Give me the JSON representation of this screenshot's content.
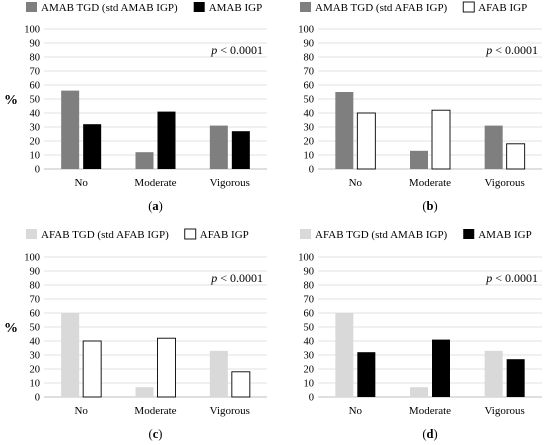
{
  "y_axis_label": "%",
  "chart_data": [
    {
      "type": "bar",
      "panel_label": "(a)",
      "categories": [
        "No",
        "Moderate",
        "Vigorous"
      ],
      "series": [
        {
          "name": "AMAB TGD (std AMAB IGP)",
          "values": [
            56,
            12,
            31
          ],
          "color": "#7f7f7f"
        },
        {
          "name": "AMAB IGP",
          "values": [
            32,
            41,
            27
          ],
          "color": "#000000"
        }
      ],
      "annotation": "p < 0.0001",
      "ylim": [
        0,
        100
      ],
      "yticks": [
        0,
        10,
        20,
        30,
        40,
        50,
        60,
        70,
        80,
        90,
        100
      ],
      "grid": true,
      "legend_position": "top-left"
    },
    {
      "type": "bar",
      "panel_label": "(b)",
      "categories": [
        "No",
        "Moderate",
        "Vigorous"
      ],
      "series": [
        {
          "name": "AMAB TGD (std AFAB IGP)",
          "values": [
            55,
            13,
            31
          ],
          "color": "#7f7f7f"
        },
        {
          "name": "AFAB IGP",
          "values": [
            40,
            42,
            18
          ],
          "color": "#ffffff"
        }
      ],
      "annotation": "p < 0.0001",
      "ylim": [
        0,
        100
      ],
      "yticks": [
        0,
        10,
        20,
        30,
        40,
        50,
        60,
        70,
        80,
        90,
        100
      ],
      "grid": true,
      "legend_position": "top-left"
    },
    {
      "type": "bar",
      "panel_label": "(c)",
      "categories": [
        "No",
        "Moderate",
        "Vigorous"
      ],
      "series": [
        {
          "name": "AFAB TGD (std AFAB IGP)",
          "values": [
            60,
            7,
            33
          ],
          "color": "#d9d9d9"
        },
        {
          "name": "AFAB IGP",
          "values": [
            40,
            42,
            18
          ],
          "color": "#ffffff"
        }
      ],
      "annotation": "p < 0.0001",
      "ylim": [
        0,
        100
      ],
      "yticks": [
        0,
        10,
        20,
        30,
        40,
        50,
        60,
        70,
        80,
        90,
        100
      ],
      "grid": true,
      "legend_position": "top-left"
    },
    {
      "type": "bar",
      "panel_label": "(d)",
      "categories": [
        "No",
        "Moderate",
        "Vigorous"
      ],
      "series": [
        {
          "name": "AFAB TGD (std AMAB IGP)",
          "values": [
            60,
            7,
            33
          ],
          "color": "#d9d9d9"
        },
        {
          "name": "AMAB IGP",
          "values": [
            32,
            41,
            27
          ],
          "color": "#000000"
        }
      ],
      "annotation": "p < 0.0001",
      "ylim": [
        0,
        100
      ],
      "yticks": [
        0,
        10,
        20,
        30,
        40,
        50,
        60,
        70,
        80,
        90,
        100
      ],
      "grid": true,
      "legend_position": "top-left"
    }
  ]
}
